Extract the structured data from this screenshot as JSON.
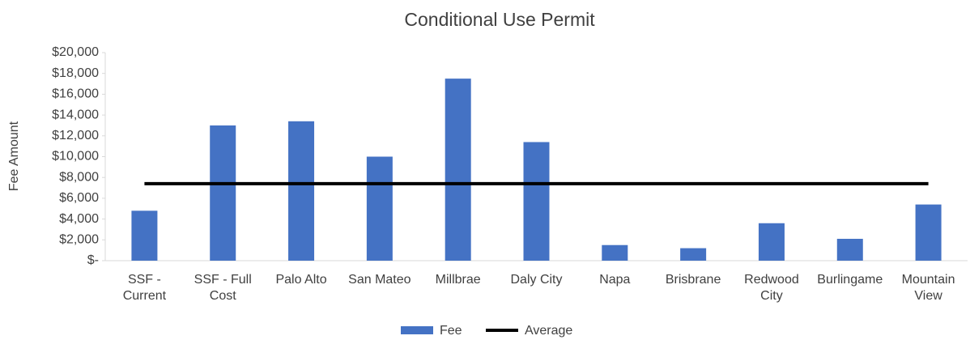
{
  "chart_data": {
    "type": "bar",
    "title": "Conditional Use Permit",
    "y_label": "Fee Amount",
    "categories": [
      "SSF - Current",
      "SSF - Full Cost",
      "Palo Alto",
      "San Mateo",
      "Millbrae",
      "Daly City",
      "Napa",
      "Brisbrane",
      "Redwood City",
      "Burlingame",
      "Mountain View"
    ],
    "series": [
      {
        "name": "Fee",
        "type": "bar",
        "color": "#4472c4",
        "values": [
          4800,
          13000,
          13400,
          10000,
          17500,
          11400,
          1500,
          1200,
          3600,
          2100,
          5400
        ]
      },
      {
        "name": "Average",
        "type": "line",
        "color": "#000000",
        "values": [
          7400,
          7400,
          7400,
          7400,
          7400,
          7400,
          7400,
          7400,
          7400,
          7400,
          7400
        ]
      }
    ],
    "ylim": [
      0,
      20000
    ],
    "yticks": [
      {
        "value": 0,
        "label": "$-"
      },
      {
        "value": 2000,
        "label": "$2,000"
      },
      {
        "value": 4000,
        "label": "$4,000"
      },
      {
        "value": 6000,
        "label": "$6,000"
      },
      {
        "value": 8000,
        "label": "$8,000"
      },
      {
        "value": 10000,
        "label": "$10,000"
      },
      {
        "value": 12000,
        "label": "$12,000"
      },
      {
        "value": 14000,
        "label": "$14,000"
      },
      {
        "value": 16000,
        "label": "$16,000"
      },
      {
        "value": 18000,
        "label": "$18,000"
      },
      {
        "value": 20000,
        "label": "$20,000"
      }
    ],
    "legend": "bottom"
  }
}
